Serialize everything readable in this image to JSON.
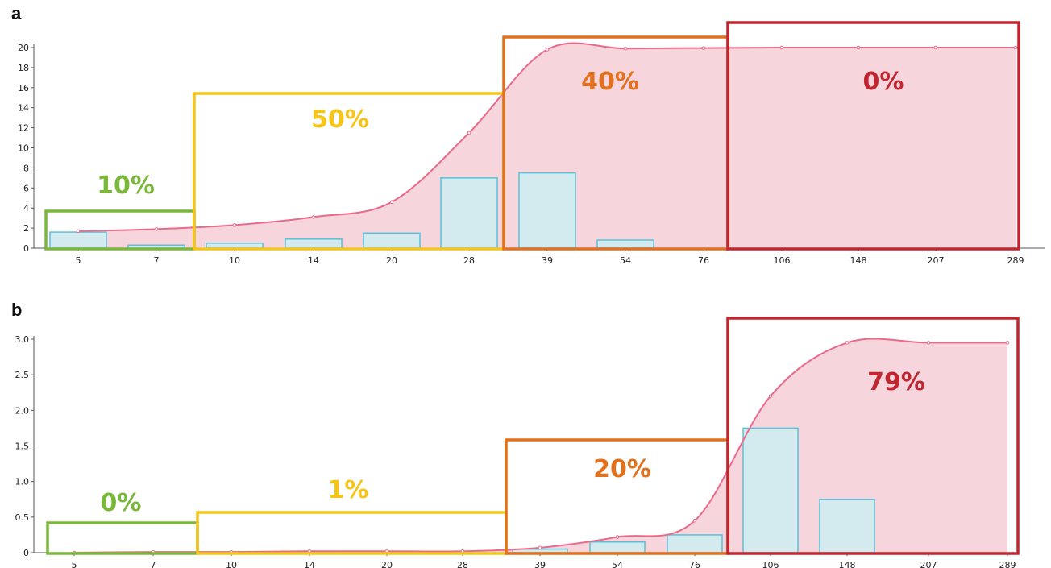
{
  "chart_data": [
    {
      "panel": "a",
      "type": "bar",
      "categories": [
        "5",
        "7",
        "10",
        "14",
        "20",
        "28",
        "39",
        "54",
        "76",
        "106",
        "148",
        "207",
        "289"
      ],
      "values": [
        1.6,
        0.3,
        0.5,
        0.9,
        1.5,
        7.0,
        7.5,
        0.8,
        0,
        0,
        0,
        0,
        0
      ],
      "cumulative_curve": [
        1.7,
        1.9,
        2.3,
        3.1,
        4.6,
        11.5,
        19.8,
        19.9,
        19.95,
        20,
        20,
        20,
        20
      ],
      "ylim": [
        0,
        20
      ],
      "yticks": [
        "0",
        "2",
        "4",
        "6",
        "8",
        "10",
        "12",
        "14",
        "16",
        "18",
        "20"
      ],
      "regions": [
        {
          "label": "10%",
          "color": "#7ab83a",
          "from": "5",
          "to": "7"
        },
        {
          "label": "50%",
          "color": "#f5c518",
          "from": "10",
          "to": "28"
        },
        {
          "label": "40%",
          "color": "#e2711d",
          "from": "39",
          "to": "76"
        },
        {
          "label": "0%",
          "color": "#c0262f",
          "from": "106",
          "to": "289"
        }
      ]
    },
    {
      "panel": "b",
      "type": "bar",
      "categories": [
        "5",
        "7",
        "10",
        "14",
        "20",
        "28",
        "39",
        "54",
        "76",
        "106",
        "148",
        "207",
        "289"
      ],
      "values": [
        0,
        0,
        0,
        0.02,
        0,
        0,
        0.05,
        0.15,
        0.25,
        1.75,
        0.75,
        0,
        0
      ],
      "cumulative_curve": [
        0,
        0.01,
        0.01,
        0.02,
        0.02,
        0.02,
        0.07,
        0.22,
        0.45,
        2.2,
        2.95,
        2.95,
        2.95
      ],
      "ylim": [
        0,
        3.0
      ],
      "yticks": [
        "0",
        "0.5",
        "1.0",
        "1.5",
        "2.0",
        "2.5",
        "3.0"
      ],
      "regions": [
        {
          "label": "0%",
          "color": "#7ab83a",
          "from": "5",
          "to": "7"
        },
        {
          "label": "1%",
          "color": "#f5c518",
          "from": "10",
          "to": "28"
        },
        {
          "label": "20%",
          "color": "#e2711d",
          "from": "39",
          "to": "76"
        },
        {
          "label": "79%",
          "color": "#c0262f",
          "from": "106",
          "to": "289"
        }
      ]
    }
  ],
  "colors": {
    "bar_fill": "#d3ebee",
    "bar_stroke": "#5bc0d8",
    "curve_line": "#ea6a8a",
    "curve_fill": "#f7d5dd",
    "axis": "#555555"
  }
}
